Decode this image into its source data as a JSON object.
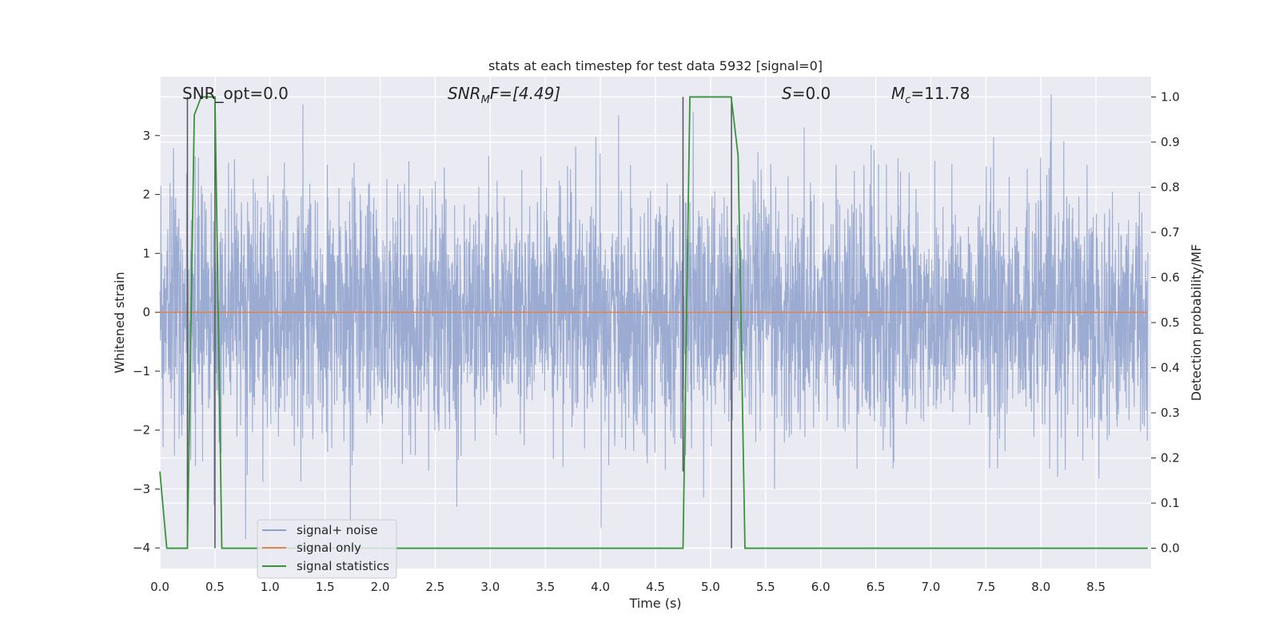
{
  "chart_data": {
    "type": "line",
    "title": "stats at each timestep for test data 5932 [signal=0]",
    "xlabel": "Time (s)",
    "ylabel": "Whitened strain",
    "y2label": "Detection probability/MF",
    "xlim": [
      0.0,
      9.0
    ],
    "ylim": [
      -4.35,
      4.0
    ],
    "y2lim": [
      -0.045,
      1.045
    ],
    "grid": true,
    "background_color": "#eaeaf2",
    "x_ticks": [
      0.0,
      0.5,
      1.0,
      1.5,
      2.0,
      2.5,
      3.0,
      3.5,
      4.0,
      4.5,
      5.0,
      5.5,
      6.0,
      6.5,
      7.0,
      7.5,
      8.0,
      8.5
    ],
    "x_tick_labels": [
      "0.0",
      "0.5",
      "1.0",
      "1.5",
      "2.0",
      "2.5",
      "3.0",
      "3.5",
      "4.0",
      "4.5",
      "5.0",
      "5.5",
      "6.0",
      "6.5",
      "7.0",
      "7.5",
      "8.0",
      "8.5"
    ],
    "y_ticks": [
      3,
      2,
      1,
      0,
      -1,
      -2,
      -3,
      -4
    ],
    "y_tick_labels": [
      "3",
      "2",
      "1",
      "0",
      "−1",
      "−2",
      "−3",
      "−4"
    ],
    "y2_ticks": [
      1.0,
      0.9,
      0.8,
      0.7,
      0.6,
      0.5,
      0.4,
      0.3,
      0.2,
      0.1,
      0.0
    ],
    "y2_tick_labels": [
      "1.0",
      "0.9",
      "0.8",
      "0.7",
      "0.6",
      "0.5",
      "0.4",
      "0.3",
      "0.2",
      "0.1",
      "0.0"
    ],
    "legend_placement": "lower-left",
    "legend": [
      {
        "name": "signal+ noise",
        "color": "#8da0cb"
      },
      {
        "name": "signal only",
        "color": "#dd8452"
      },
      {
        "name": "signal statistics",
        "color": "#3a923a"
      }
    ],
    "annotations": {
      "snr_opt": "SNR_opt=0.0",
      "snr_mf_prefix": "SNR",
      "snr_mf_sub": "M",
      "snr_mf_suffix": "F=[4.49]",
      "s_sym": "S",
      "s_val": "=0.0",
      "mc_sym": "M",
      "mc_sub": "c",
      "mc_val": "=11.78"
    },
    "series": [
      {
        "name": "signal+ noise",
        "axis": "left",
        "color": "#8da0cb",
        "noise_sigma": 1.0,
        "sample_count": 4000,
        "t_end": 8.97
      },
      {
        "name": "signal only",
        "axis": "left",
        "color": "#dd8452",
        "x": [
          0.0,
          8.97
        ],
        "y": [
          0.0,
          0.0
        ]
      },
      {
        "name": "signal statistics",
        "axis": "right",
        "color": "#3a923a",
        "x": [
          0.0,
          0.0625,
          0.125,
          0.1875,
          0.25,
          0.3125,
          0.375,
          0.4375,
          0.5,
          0.5625,
          0.625,
          4.5,
          4.75,
          4.8125,
          4.875,
          5.0,
          5.1875,
          5.25,
          5.3125,
          5.375,
          5.5,
          8.97
        ],
        "y": [
          0.17,
          0.0,
          0.0,
          0.0,
          0.0,
          0.96,
          1.0,
          1.0,
          1.0,
          0.0,
          0.0,
          0.0,
          0.0,
          1.0,
          1.0,
          1.0,
          1.0,
          0.87,
          0.0,
          0.0,
          0.0,
          0.0
        ]
      }
    ],
    "vertical_markers": [
      {
        "x": 0.25,
        "y2_top": 1.0,
        "y2_bottom": 0.0
      },
      {
        "x": 0.5,
        "y2_top": 1.0,
        "y2_bottom": 0.0
      },
      {
        "x": 4.75,
        "y2_top": 1.0,
        "y2_bottom": 0.17
      },
      {
        "x": 5.19,
        "y2_top": 1.0,
        "y2_bottom": 0.0
      }
    ]
  }
}
